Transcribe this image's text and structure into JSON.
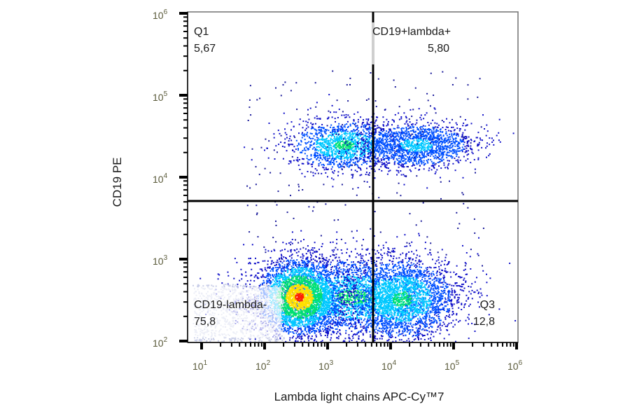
{
  "chart_data": {
    "type": "scatter",
    "subtype": "flow-cytometry-density-dot-plot",
    "title": "",
    "xlabel": "Lambda light chains APC-Cy™7",
    "ylabel": "CD19 PE",
    "xscale": "log",
    "yscale": "log",
    "xlim": [
      5,
      1000000
    ],
    "ylim": [
      80,
      1000000
    ],
    "x_ticks": [
      "10^1",
      "10^2",
      "10^3",
      "10^4",
      "10^5",
      "10^6"
    ],
    "y_ticks": [
      "10^2",
      "10^3",
      "10^4",
      "10^5",
      "10^6"
    ],
    "grid": false,
    "gates": {
      "vertical_x": 5500,
      "horizontal_y": 5000
    },
    "quadrants": [
      {
        "name": "Q1",
        "position": "upper-left",
        "percent": "5,67"
      },
      {
        "name": "CD19+lambda+",
        "position": "upper-right",
        "percent": "5,80"
      },
      {
        "name": "Q3",
        "position": "lower-right",
        "percent": "12,8"
      },
      {
        "name": "CD19-lambda-",
        "position": "lower-left",
        "percent": "75,8"
      }
    ],
    "populations": [
      {
        "label": "CD19+ lambda- cluster",
        "center_x": 1800,
        "center_y": 25000,
        "density": "medium"
      },
      {
        "label": "CD19+ lambda+ cluster",
        "center_x": 25000,
        "center_y": 25000,
        "density": "medium"
      },
      {
        "label": "CD19- lambda- main cluster",
        "center_x": 350,
        "center_y": 350,
        "density": "high"
      },
      {
        "label": "CD19- lambda-dim cluster",
        "center_x": 2500,
        "center_y": 350,
        "density": "medium"
      },
      {
        "label": "CD19- lambda+ cluster",
        "center_x": 15000,
        "center_y": 330,
        "density": "medium"
      }
    ],
    "colormap": [
      "#1010c8",
      "#0050ff",
      "#00c8ff",
      "#00e070",
      "#ffe000",
      "#ff2000"
    ]
  },
  "axes": {
    "x_title": "Lambda light chains APC-Cy™7",
    "y_title": "CD19 PE",
    "x_tick_labels": [
      {
        "base": "10",
        "exp": "1"
      },
      {
        "base": "10",
        "exp": "2"
      },
      {
        "base": "10",
        "exp": "3"
      },
      {
        "base": "10",
        "exp": "4"
      },
      {
        "base": "10",
        "exp": "5"
      },
      {
        "base": "10",
        "exp": "6"
      }
    ],
    "y_tick_labels": [
      {
        "base": "10",
        "exp": "6"
      },
      {
        "base": "10",
        "exp": "5"
      },
      {
        "base": "10",
        "exp": "4"
      },
      {
        "base": "10",
        "exp": "3"
      },
      {
        "base": "10",
        "exp": "2"
      }
    ]
  },
  "quadrant_labels": {
    "q1_name": "Q1",
    "q1_value": "5,67",
    "q2_name": "CD19+lambda+",
    "q2_value": "5,80",
    "q3_name": "Q3",
    "q3_value": "12,8",
    "q4_name": "CD19-lambda-",
    "q4_value": "75,8"
  }
}
